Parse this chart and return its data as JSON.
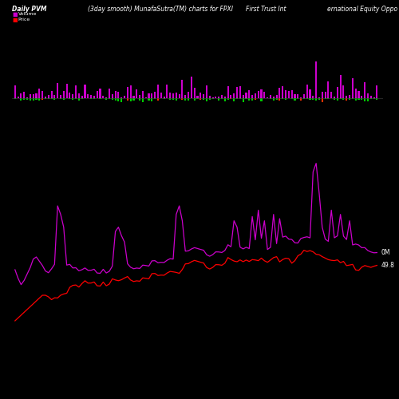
{
  "title_left": "Daily PVM",
  "title_center": "(3day smooth) MunafaSutra(TM) charts for FPXI",
  "title_right1": "First Trust Int",
  "title_right2": "ernational Equity Oppo",
  "legend_volume_color": "#cc00cc",
  "legend_price_color": "#ff0000",
  "background_color": "#000000",
  "n_bars": 120,
  "label_0m": "0M",
  "label_price": "49.8",
  "volume_line_color": "#cc00cc",
  "price_line_color": "#ff0000",
  "bar_up_color": "#cc00cc",
  "bar_down_green": "#00cc00",
  "bar_down_red": "#ff3300"
}
